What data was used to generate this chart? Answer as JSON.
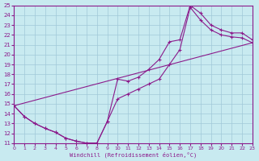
{
  "xlabel": "Windchill (Refroidissement éolien,°C)",
  "bg_color": "#c8eaf0",
  "grid_color": "#a0c8d8",
  "line_color": "#8b1a8b",
  "xlim": [
    0,
    23
  ],
  "ylim": [
    11,
    25
  ],
  "xticks": [
    0,
    1,
    2,
    3,
    4,
    5,
    6,
    7,
    8,
    9,
    10,
    11,
    12,
    13,
    14,
    15,
    16,
    17,
    18,
    19,
    20,
    21,
    22,
    23
  ],
  "yticks": [
    11,
    12,
    13,
    14,
    15,
    16,
    17,
    18,
    19,
    20,
    21,
    22,
    23,
    24,
    25
  ],
  "line1_x": [
    0,
    1,
    2,
    3,
    4,
    5,
    6,
    7,
    8,
    9,
    10,
    11,
    12,
    13,
    14,
    15,
    16,
    17,
    18,
    19,
    20,
    21,
    22,
    23
  ],
  "line1_y": [
    14.8,
    13.7,
    13.0,
    12.5,
    12.1,
    11.5,
    11.2,
    11.0,
    11.0,
    13.2,
    17.5,
    17.3,
    17.7,
    18.5,
    19.5,
    21.3,
    21.5,
    25.0,
    24.2,
    23.0,
    22.5,
    22.2,
    22.2,
    21.5
  ],
  "line2_x": [
    0,
    1,
    2,
    3,
    4,
    5,
    6,
    7,
    8,
    9,
    10,
    11,
    12,
    13,
    14,
    15,
    16,
    17,
    18,
    19,
    20,
    21,
    22,
    23
  ],
  "line2_y": [
    14.8,
    13.7,
    13.0,
    12.5,
    12.1,
    11.5,
    11.2,
    11.0,
    11.0,
    13.2,
    15.5,
    16.0,
    16.5,
    17.0,
    17.5,
    19.0,
    20.5,
    24.8,
    23.5,
    22.5,
    22.0,
    21.8,
    21.7,
    21.2
  ],
  "line3_x": [
    0,
    23
  ],
  "line3_y": [
    14.8,
    21.2
  ]
}
